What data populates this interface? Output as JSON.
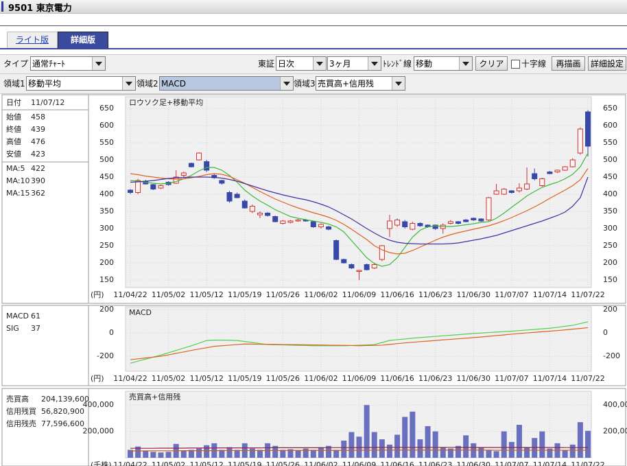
{
  "header": {
    "title": "9501 東京電力"
  },
  "tabs": [
    "ライト版",
    "詳細版"
  ],
  "toolbar": {
    "type_label": "タイプ",
    "type": "通常ﾁｬｰﾄ",
    "market_label": "東証",
    "interval": "日次",
    "period": "3ヶ月",
    "trend_label": "ﾄﾚﾝﾄﾞ線",
    "trend": "移動",
    "clear": "クリア",
    "crosshair": "十字線",
    "redraw": "再描画",
    "settings": "詳細設定"
  },
  "areas": [
    {
      "label": "領域1",
      "value": "移動平均"
    },
    {
      "label": "領域2",
      "value": "MACD"
    },
    {
      "label": "領域3",
      "value": "売買高+信用残"
    }
  ],
  "info": {
    "rows": [
      [
        "日付",
        "11/07/12"
      ],
      [
        "始値",
        "458"
      ],
      [
        "終値",
        "439"
      ],
      [
        "高値",
        "476"
      ],
      [
        "安値",
        "423"
      ]
    ]
  },
  "chart_data": [
    {
      "type": "candlestick",
      "title": "ロウソク足+移動平均",
      "y_unit": "(円)",
      "categories": [
        "11/04/22",
        null,
        null,
        null,
        null,
        "11/05/02",
        null,
        null,
        null,
        null,
        "11/05/12",
        null,
        null,
        null,
        null,
        "11/05/19",
        null,
        null,
        null,
        null,
        "11/05/26",
        null,
        null,
        null,
        null,
        "11/06/02",
        null,
        null,
        null,
        null,
        "11/06/09",
        null,
        null,
        null,
        null,
        "11/06/16",
        null,
        null,
        null,
        null,
        "11/06/23",
        null,
        null,
        null,
        null,
        "11/06/30",
        null,
        null,
        null,
        null,
        "11/07/07",
        null,
        null,
        null,
        null,
        "11/07/14",
        null,
        null,
        null,
        null,
        "11/07/22"
      ],
      "open": [
        412,
        405,
        438,
        428,
        418,
        435,
        432,
        455,
        490,
        500,
        495,
        455,
        440,
        405,
        400,
        380,
        350,
        340,
        345,
        335,
        315,
        318,
        322,
        325,
        320,
        305,
        305,
        265,
        210,
        195,
        175,
        195,
        185,
        210,
        300,
        310,
        320,
        298,
        315,
        310,
        310,
        300,
        315,
        320,
        325,
        330,
        328,
        325,
        400,
        400,
        410,
        410,
        415,
        460,
        425,
        465,
        465,
        470,
        480,
        520,
        640
      ],
      "high": [
        415,
        445,
        442,
        430,
        428,
        438,
        470,
        466,
        492,
        522,
        500,
        460,
        442,
        410,
        405,
        385,
        370,
        350,
        348,
        338,
        325,
        325,
        328,
        328,
        322,
        315,
        308,
        268,
        212,
        198,
        180,
        198,
        200,
        252,
        340,
        330,
        325,
        320,
        318,
        312,
        312,
        315,
        325,
        322,
        328,
        332,
        330,
        392,
        430,
        418,
        412,
        432,
        478,
        475,
        448,
        468,
        472,
        482,
        505,
        595,
        645
      ],
      "low": [
        400,
        400,
        428,
        412,
        415,
        425,
        430,
        450,
        478,
        498,
        465,
        445,
        428,
        375,
        388,
        358,
        345,
        330,
        335,
        318,
        312,
        315,
        320,
        320,
        302,
        300,
        295,
        208,
        198,
        182,
        150,
        178,
        182,
        205,
        275,
        305,
        300,
        295,
        305,
        302,
        296,
        285,
        312,
        312,
        318,
        322,
        320,
        322,
        398,
        398,
        402,
        405,
        412,
        440,
        422,
        458,
        462,
        468,
        478,
        515,
        510
      ],
      "close": [
        405,
        440,
        430,
        415,
        425,
        428,
        450,
        462,
        480,
        520,
        470,
        448,
        432,
        380,
        390,
        360,
        365,
        345,
        338,
        320,
        322,
        322,
        325,
        322,
        305,
        312,
        298,
        210,
        200,
        185,
        178,
        180,
        195,
        250,
        322,
        325,
        305,
        315,
        308,
        305,
        300,
        310,
        320,
        315,
        320,
        325,
        322,
        390,
        410,
        415,
        405,
        418,
        430,
        445,
        445,
        460,
        470,
        480,
        500,
        590,
        540
      ],
      "up_color": "#d03030",
      "down_color": "#3848a8",
      "series": [
        {
          "name": "MA:5",
          "legend_value": 422,
          "color": "#3cb83c",
          "values": [
            440,
            438,
            435,
            432,
            430,
            432,
            437,
            445,
            455,
            468,
            478,
            478,
            470,
            455,
            435,
            412,
            395,
            380,
            368,
            355,
            345,
            335,
            330,
            326,
            322,
            318,
            313,
            305,
            290,
            265,
            240,
            215,
            198,
            190,
            195,
            215,
            245,
            275,
            295,
            305,
            308,
            306,
            306,
            308,
            311,
            314,
            318,
            320,
            330,
            345,
            362,
            378,
            395,
            408,
            420,
            428,
            435,
            445,
            458,
            480,
            520
          ]
        },
        {
          "name": "MA:10",
          "legend_value": 390,
          "color": "#e06020",
          "values": [
            460,
            457,
            453,
            450,
            447,
            445,
            444,
            445,
            448,
            452,
            457,
            460,
            458,
            452,
            442,
            432,
            420,
            408,
            397,
            386,
            377,
            368,
            360,
            353,
            346,
            340,
            333,
            324,
            312,
            298,
            283,
            268,
            250,
            238,
            230,
            226,
            228,
            236,
            246,
            256,
            266,
            275,
            282,
            288,
            293,
            298,
            303,
            308,
            315,
            323,
            332,
            342,
            352,
            363,
            375,
            388,
            400,
            412,
            425,
            442,
            475
          ]
        },
        {
          "name": "MA:15",
          "legend_value": 362,
          "color": "#4030a0",
          "values": [
            435,
            436,
            438,
            440,
            443,
            446,
            448,
            449,
            450,
            450,
            450,
            449,
            447,
            443,
            438,
            431,
            424,
            417,
            410,
            404,
            398,
            393,
            388,
            384,
            378,
            371,
            363,
            352,
            340,
            328,
            314,
            300,
            287,
            275,
            266,
            260,
            257,
            256,
            255,
            255,
            255,
            255,
            256,
            258,
            262,
            266,
            270,
            275,
            280,
            287,
            294,
            301,
            308,
            315,
            322,
            330,
            338,
            348,
            365,
            390,
            450
          ]
        }
      ],
      "ylim": [
        128,
        684
      ],
      "yticks": [
        150,
        200,
        250,
        300,
        350,
        400,
        450,
        500,
        550,
        600,
        650
      ],
      "grid": true
    },
    {
      "type": "line",
      "title": "MACD",
      "y_unit": "(円)",
      "series": [
        {
          "name": "MACD",
          "legend_value": 61,
          "color": "#50d050",
          "values": [
            -260,
            -242,
            -225,
            -207,
            -190,
            -170,
            -150,
            -130,
            -110,
            -88,
            -65,
            -62,
            -62,
            -63,
            -65,
            -74,
            -82,
            -91,
            -100,
            -102,
            -103,
            -105,
            -107,
            -108,
            -110,
            -110,
            -110,
            -110,
            -110,
            -108,
            -105,
            -103,
            -100,
            -82,
            -65,
            -58,
            -52,
            -45,
            -40,
            -35,
            -30,
            -25,
            -20,
            -15,
            -10,
            -5,
            -1,
            3,
            7,
            11,
            15,
            20,
            25,
            30,
            35,
            40,
            48,
            57,
            65,
            80,
            95
          ]
        },
        {
          "name": "SIG",
          "legend_value": 37,
          "color": "#e06020",
          "values": [
            -230,
            -222,
            -215,
            -208,
            -200,
            -188,
            -175,
            -163,
            -150,
            -138,
            -127,
            -115,
            -110,
            -105,
            -100,
            -95,
            -96,
            -97,
            -98,
            -99,
            -100,
            -100,
            -101,
            -102,
            -103,
            -104,
            -105,
            -106,
            -107,
            -108,
            -110,
            -108,
            -107,
            -105,
            -99,
            -92,
            -86,
            -80,
            -75,
            -70,
            -65,
            -60,
            -55,
            -50,
            -45,
            -40,
            -35,
            -29,
            -23,
            -17,
            -11,
            -5,
            0,
            5,
            10,
            15,
            20,
            26,
            32,
            38,
            45
          ]
        }
      ],
      "ylim": [
        -329,
        224
      ],
      "yticks": [
        -200,
        0,
        200
      ],
      "grid": true
    },
    {
      "type": "bar",
      "title": "売買高+信用残",
      "y_unit": "(千株)",
      "series": [
        {
          "name": "売買高",
          "legend_value": "204,139,600",
          "style": "bar",
          "color": "#6a70c0",
          "values": [
            60000,
            85000,
            55000,
            45000,
            40000,
            45000,
            105000,
            55000,
            60000,
            70000,
            95000,
            110000,
            60000,
            80000,
            60000,
            110000,
            70000,
            60000,
            110000,
            90000,
            60000,
            65000,
            55000,
            70000,
            60000,
            80000,
            90000,
            60000,
            130000,
            195000,
            160000,
            400000,
            195000,
            140000,
            100000,
            175000,
            310000,
            350000,
            140000,
            240000,
            200000,
            80000,
            70000,
            90000,
            170000,
            110000,
            80000,
            60000,
            50000,
            200000,
            120000,
            250000,
            80000,
            150000,
            200000,
            70000,
            110000,
            60000,
            100000,
            270000,
            204140
          ]
        },
        {
          "name": "信用残買",
          "legend_value": "56,820,900",
          "style": "line",
          "color": "#c06020",
          "values": [
            52000,
            52000,
            52000,
            53000,
            53000,
            53000,
            53000,
            54000,
            54000,
            54000,
            54000,
            54000,
            55000,
            55000,
            55000,
            55000,
            55000,
            55000,
            55000,
            55000,
            55000,
            56000,
            56000,
            56000,
            56000,
            56000,
            56000,
            56000,
            56000,
            56000,
            57000,
            57000,
            57000,
            58000,
            58000,
            58000,
            58000,
            58000,
            58000,
            58000,
            58000,
            58000,
            58000,
            58000,
            58000,
            58000,
            58000,
            58000,
            57000,
            57000,
            57000,
            57000,
            57000,
            57000,
            57000,
            57000,
            57000,
            57000,
            57000,
            57000,
            56821
          ]
        },
        {
          "name": "信用残売",
          "legend_value": "77,596,600",
          "style": "line",
          "color": "#a02040",
          "values": [
            72000,
            72000,
            72000,
            72000,
            73000,
            73000,
            73000,
            73000,
            74000,
            74000,
            74000,
            74000,
            75000,
            75000,
            75000,
            75000,
            75000,
            75000,
            76000,
            76000,
            76000,
            76000,
            76000,
            76000,
            76000,
            76000,
            77000,
            77000,
            77000,
            77000,
            78000,
            78000,
            78000,
            79000,
            79000,
            79000,
            79000,
            79000,
            79000,
            79000,
            79000,
            79000,
            79000,
            78000,
            78000,
            78000,
            78000,
            78000,
            78000,
            78000,
            78000,
            78000,
            78000,
            78000,
            78000,
            78000,
            78000,
            77000,
            77000,
            77000,
            77597
          ]
        }
      ],
      "ylim": [
        0,
        505000
      ],
      "yticks": [
        {
          "value": 200000,
          "label": "200,000"
        },
        {
          "value": 400000,
          "label": "400,000"
        }
      ],
      "grid": true
    }
  ]
}
